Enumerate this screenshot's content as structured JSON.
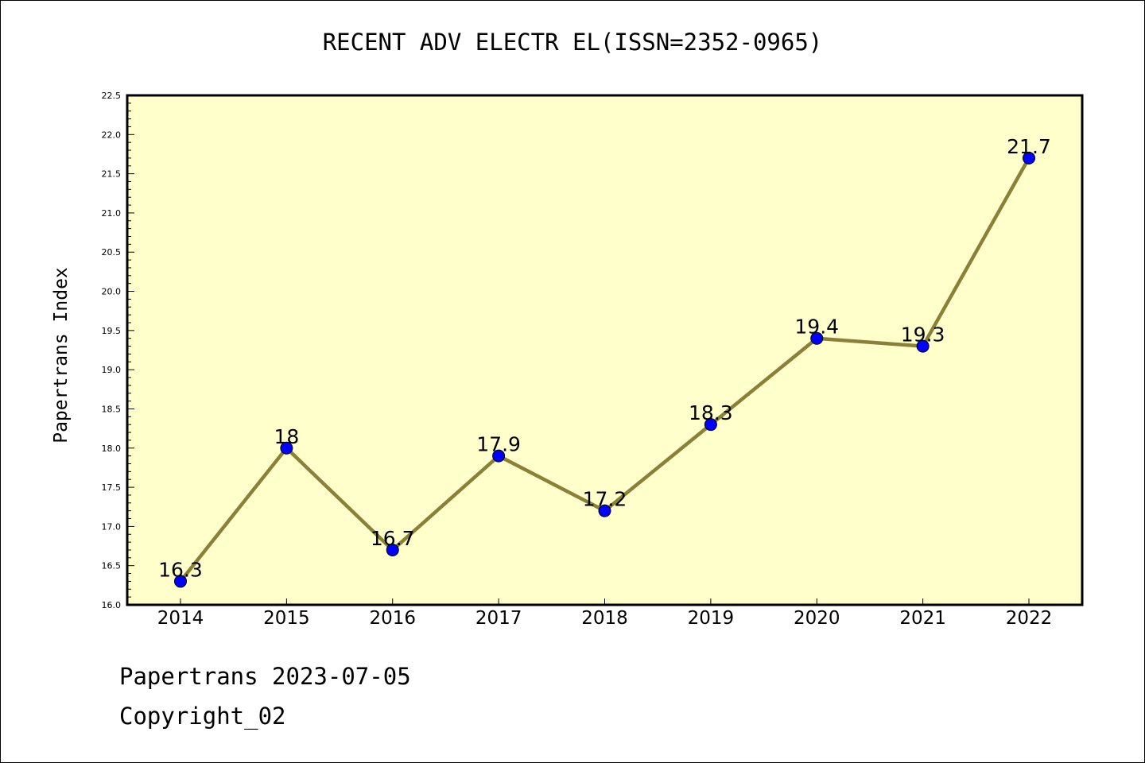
{
  "chart_data": {
    "type": "line",
    "title": "RECENT ADV ELECTR EL(ISSN=2352-0965)",
    "xlabel": "",
    "ylabel": "Papertrans Index",
    "categories": [
      "2014",
      "2015",
      "2016",
      "2017",
      "2018",
      "2019",
      "2020",
      "2021",
      "2022"
    ],
    "series": [
      {
        "values": [
          16.3,
          18,
          16.7,
          17.9,
          17.2,
          18.3,
          19.4,
          19.3,
          21.7
        ],
        "labels": [
          "16.3",
          "18",
          "16.7",
          "17.9",
          "17.2",
          "18.3",
          "19.4",
          "19.3",
          "21.7"
        ]
      }
    ],
    "ylim": [
      16.0,
      22.5
    ],
    "yticks": [
      "16.0",
      "16.5",
      "17.0",
      "17.5",
      "18.0",
      "18.5",
      "19.0",
      "19.5",
      "20.0",
      "20.5",
      "21.0",
      "21.5",
      "22.0",
      "22.5"
    ],
    "grid": false,
    "colors": {
      "plot_background": "#ffffcc",
      "line": "#8b8038",
      "marker": "#0000ff"
    }
  },
  "footer": {
    "line1": "Papertrans 2023-07-05",
    "line2": "Copyright_02"
  }
}
